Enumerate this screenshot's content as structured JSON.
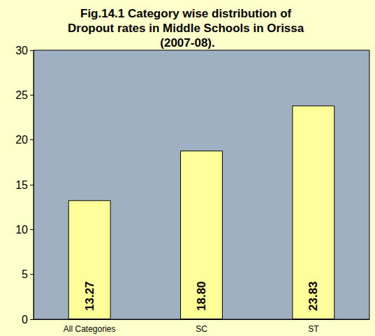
{
  "chart_data": {
    "type": "bar",
    "title": "Fig.14.1 Category wise distribution of Dropout rates in Middle Schools in Orissa (2007-08).",
    "categories": [
      "All Categories",
      "SC",
      "ST"
    ],
    "values": [
      13.27,
      18.8,
      23.83
    ],
    "value_labels": [
      "13.27",
      "18.80",
      "23.83"
    ],
    "color": "#FFFF99",
    "ylim": [
      0,
      30
    ],
    "yticks": [
      0,
      5,
      10,
      15,
      20,
      25,
      30
    ],
    "grid": false,
    "data_labels": true
  }
}
